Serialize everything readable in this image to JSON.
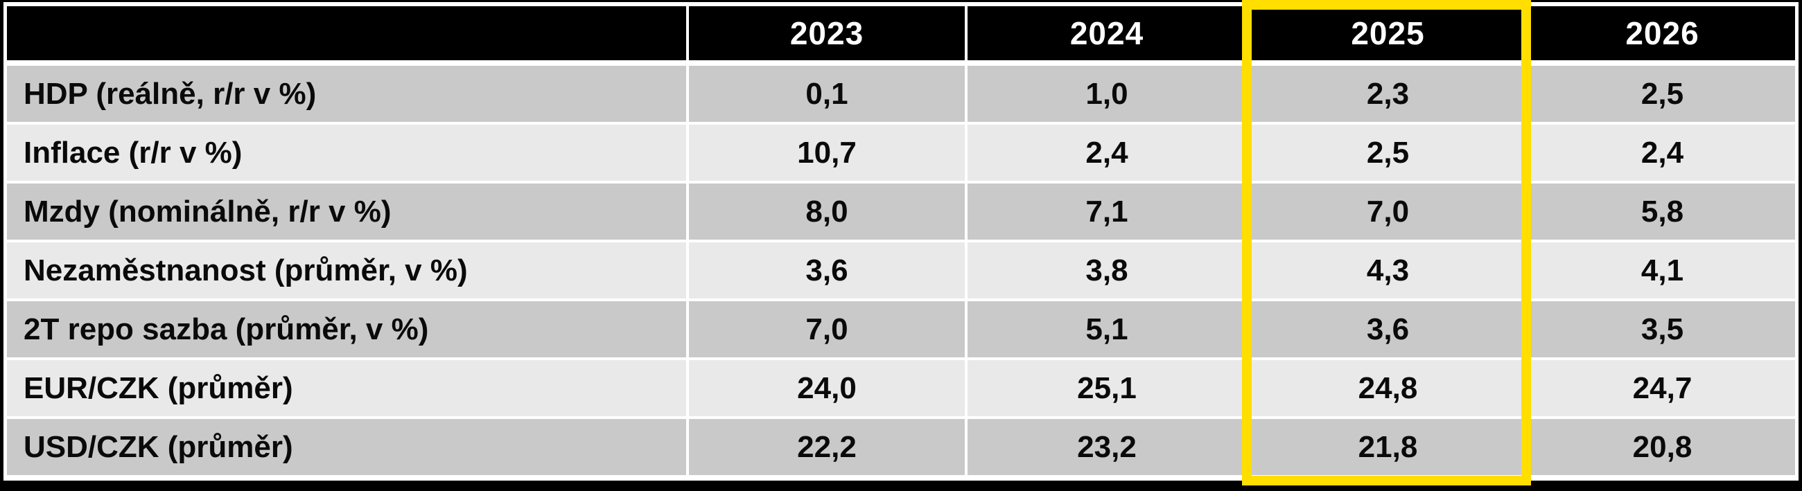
{
  "table": {
    "corner_label": "",
    "columns": [
      "2023",
      "2024",
      "2025",
      "2026"
    ],
    "highlighted_column": "2025",
    "rows": [
      {
        "label": "HDP (reálně, r/r v %)",
        "values": [
          "0,1",
          "1,0",
          "2,3",
          "2,5"
        ]
      },
      {
        "label": "Inflace (r/r v %)",
        "values": [
          "10,7",
          "2,4",
          "2,5",
          "2,4"
        ]
      },
      {
        "label": "Mzdy (nominálně, r/r v %)",
        "values": [
          "8,0",
          "7,1",
          "7,0",
          "5,8"
        ]
      },
      {
        "label": "Nezaměstnanost (průměr, v %)",
        "values": [
          "3,6",
          "3,8",
          "4,3",
          "4,1"
        ]
      },
      {
        "label": "2T repo sazba (průměr, v %)",
        "values": [
          "7,0",
          "5,1",
          "3,6",
          "3,5"
        ]
      },
      {
        "label": "EUR/CZK (průměr)",
        "values": [
          "24,0",
          "25,1",
          "24,8",
          "24,7"
        ]
      },
      {
        "label": "USD/CZK (průměr)",
        "values": [
          "22,2",
          "23,2",
          "21,8",
          "20,8"
        ]
      }
    ],
    "colors": {
      "header_bg": "#000000",
      "header_text": "#ffffff",
      "row_dark": "#c9c9c9",
      "row_light": "#e9e9e9",
      "highlight_border": "#ffde00",
      "frame": "#000000",
      "text": "#0a0a0a"
    }
  },
  "chart_data": {
    "type": "table",
    "title": "",
    "categories": [
      "2023",
      "2024",
      "2025",
      "2026"
    ],
    "series": [
      {
        "name": "HDP (reálně, r/r v %)",
        "values": [
          0.1,
          1.0,
          2.3,
          2.5
        ]
      },
      {
        "name": "Inflace (r/r v %)",
        "values": [
          10.7,
          2.4,
          2.5,
          2.4
        ]
      },
      {
        "name": "Mzdy (nominálně, r/r v %)",
        "values": [
          8.0,
          7.1,
          7.0,
          5.8
        ]
      },
      {
        "name": "Nezaměstnanost (průměr, v %)",
        "values": [
          3.6,
          3.8,
          4.3,
          4.1
        ]
      },
      {
        "name": "2T repo sazba (průměr, v %)",
        "values": [
          7.0,
          5.1,
          3.6,
          3.5
        ]
      },
      {
        "name": "EUR/CZK (průměr)",
        "values": [
          24.0,
          25.1,
          24.8,
          24.7
        ]
      },
      {
        "name": "USD/CZK (průměr)",
        "values": [
          22.2,
          23.2,
          21.8,
          20.8
        ]
      }
    ],
    "layout_hints": {
      "decimal_separator": ",",
      "highlighted_column": "2025",
      "header_style": "black background, white bold text",
      "row_striping": [
        "dark-gray",
        "light-gray"
      ]
    }
  }
}
